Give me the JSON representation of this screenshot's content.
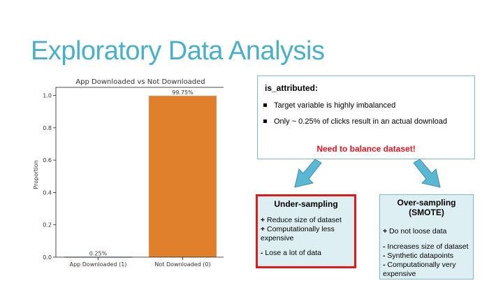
{
  "slide": {
    "title": "Exploratory Data Analysis"
  },
  "chart_data": {
    "type": "bar",
    "title": "App Downloaded vs Not Downloaded",
    "xlabel": "",
    "ylabel": "Proportion",
    "categories": [
      "App Downloaded (1)",
      "Not Downloaded (0)"
    ],
    "values": [
      0.0025,
      0.9975
    ],
    "data_labels": [
      "0.25%",
      "99.75%"
    ],
    "colors": [
      "#3A6FB0",
      "#E07F2C"
    ],
    "ylim": [
      0,
      1.05
    ],
    "yticks": [
      0.0,
      0.2,
      0.4,
      0.6,
      0.8,
      1.0
    ],
    "ytick_labels": [
      "0.0",
      "0.2",
      "0.4",
      "0.6",
      "0.8",
      "1.0"
    ],
    "grid": false
  },
  "info_box": {
    "heading": "is_attributed:",
    "bullets": [
      "Target variable is highly imbalanced",
      "Only ~ 0.25% of clicks result in an actual download"
    ],
    "alert": "Need to balance dataset!",
    "alert_color": "#E3141E"
  },
  "under_sampling": {
    "title": "Under-sampling",
    "lines": [
      {
        "sign": "+",
        "text": " Reduce size of dataset"
      },
      {
        "sign": "+",
        "text": " Computationally less"
      },
      {
        "sign": "",
        "text": "expensive"
      },
      {
        "sign": "-",
        "text": " Lose a lot of data"
      }
    ],
    "border_color": "#E01A1A"
  },
  "over_sampling": {
    "title_line1": "Over-sampling",
    "title_line2": "(SMOTE)",
    "lines": [
      {
        "sign": "+",
        "text": " Do not loose data"
      },
      {
        "sign": "-",
        "text": " Increases size of dataset"
      },
      {
        "sign": "-",
        "text": " Synthetic datapoints"
      },
      {
        "sign": "-",
        "text": " Computationally very"
      },
      {
        "sign": "",
        "text": "expensive"
      }
    ]
  },
  "theme": {
    "accent": "#4AAFC8",
    "card_fill": "#DDEFF2"
  }
}
